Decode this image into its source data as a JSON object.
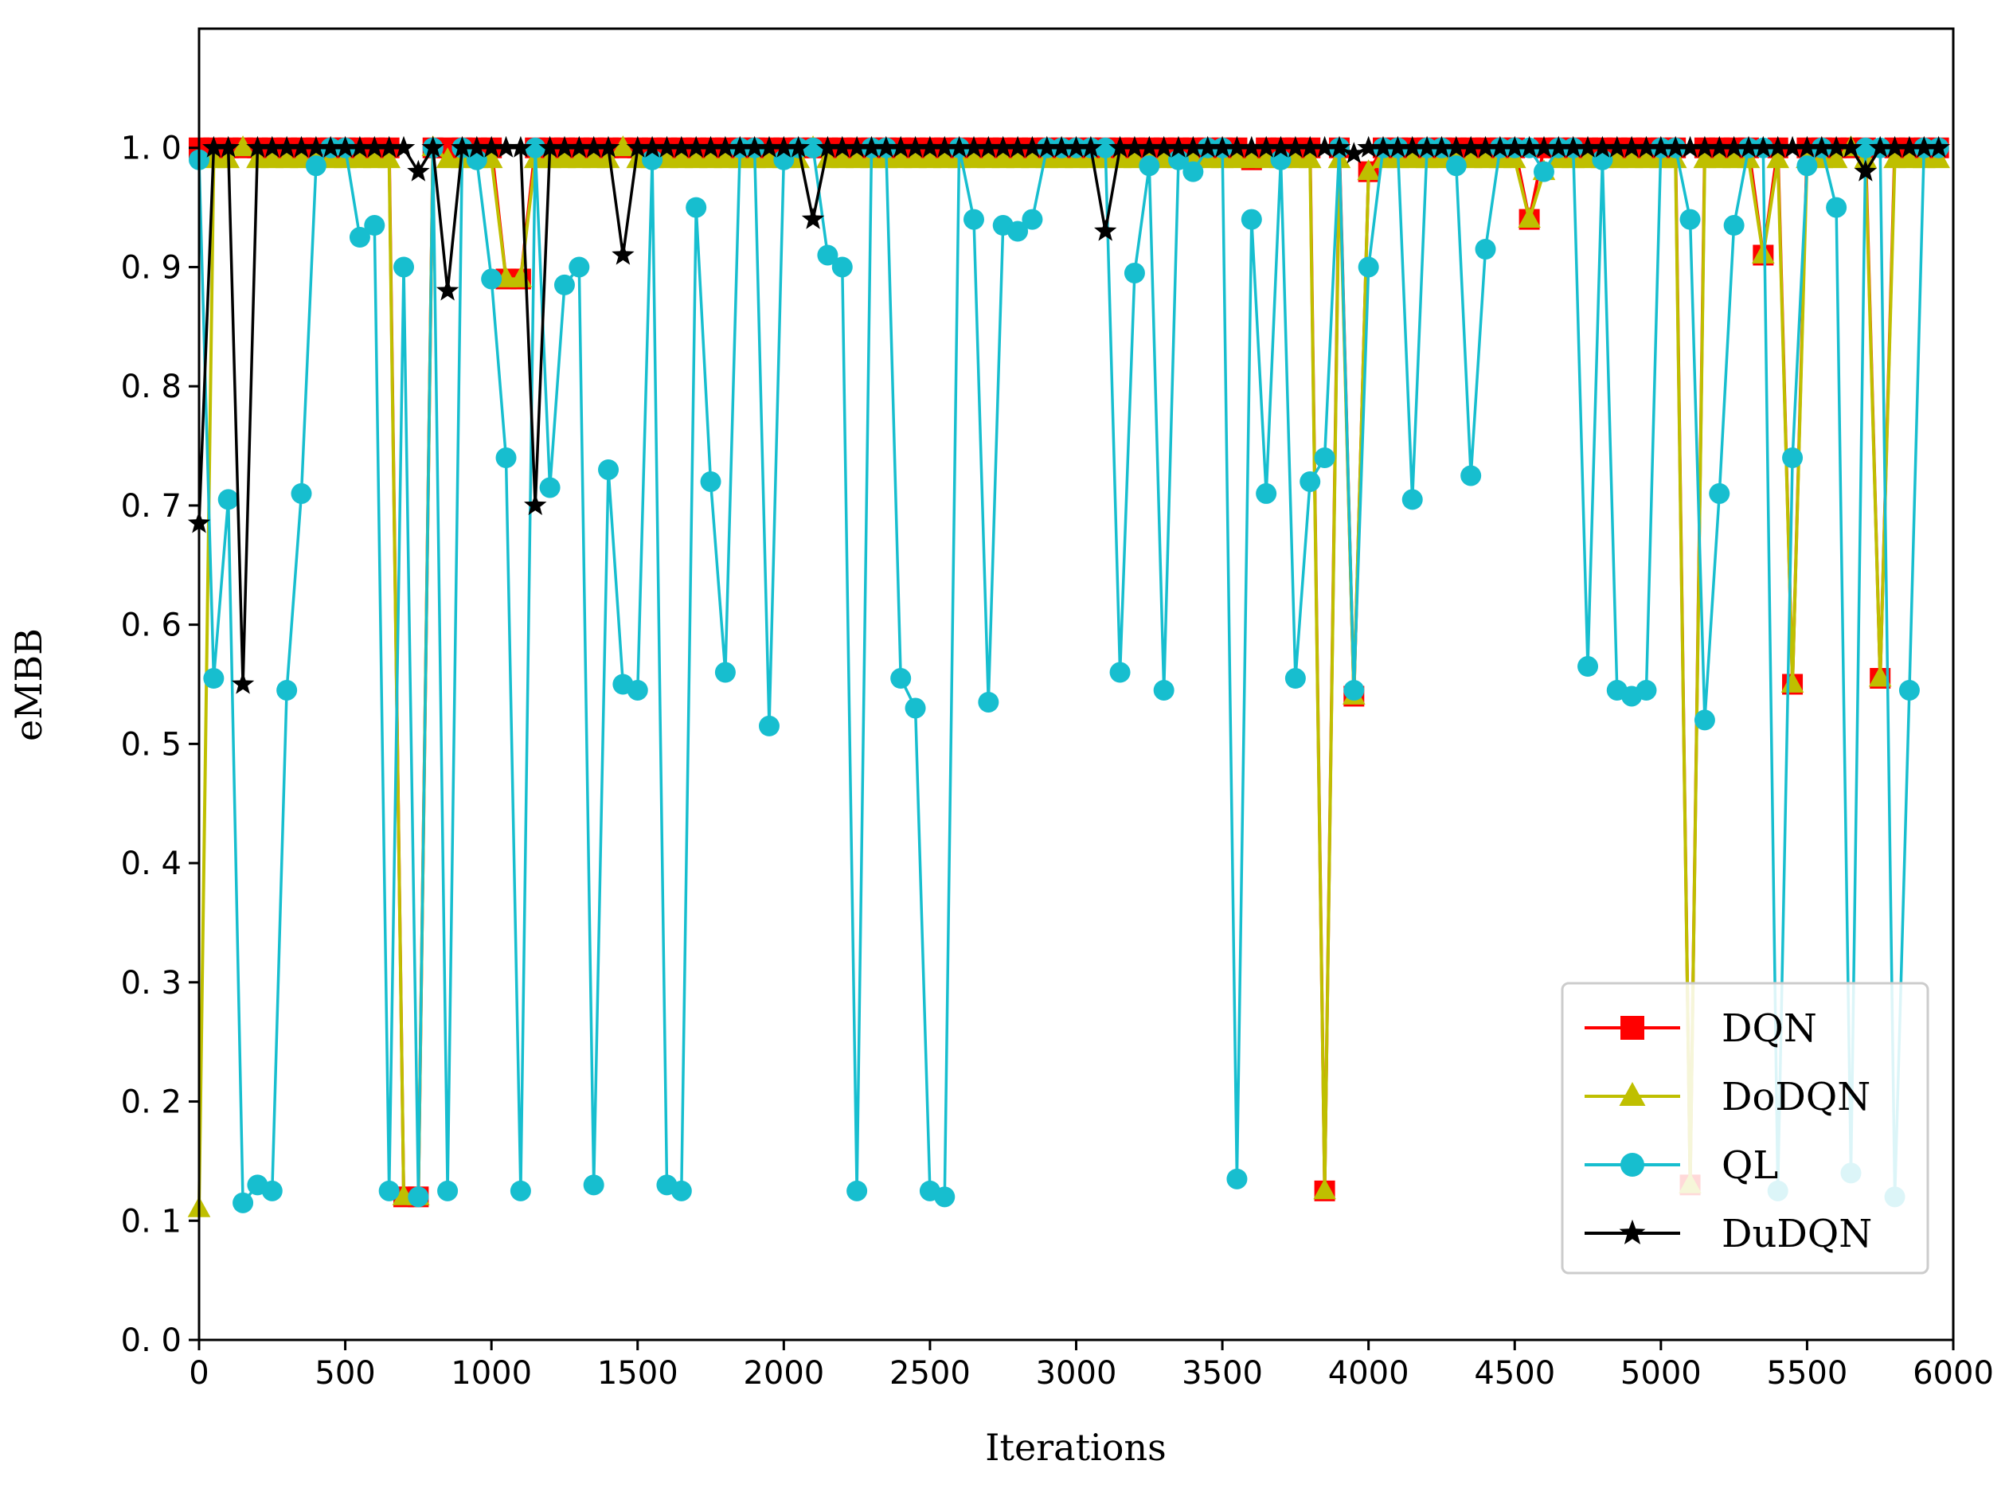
{
  "chart_data": {
    "type": "line",
    "title": "",
    "xlabel": "Iterations",
    "ylabel": "eMBB",
    "xlim": [
      0,
      6000
    ],
    "ylim": [
      0.0,
      1.1
    ],
    "x_ticks": [
      0,
      500,
      1000,
      1500,
      2000,
      2500,
      3000,
      3500,
      4000,
      4500,
      5000,
      5500,
      6000
    ],
    "x_tick_labels": [
      "0",
      "500",
      "1000",
      "1500",
      "2000",
      "2500",
      "3000",
      "3500",
      "4000",
      "4500",
      "5000",
      "5500",
      "6000"
    ],
    "y_ticks": [
      0.0,
      0.1,
      0.2,
      0.3,
      0.4,
      0.5,
      0.6,
      0.7,
      0.8,
      0.9,
      1.0
    ],
    "y_tick_labels": [
      "0. 0",
      "0. 1",
      "0. 2",
      "0. 3",
      "0. 4",
      "0. 5",
      "0. 6",
      "0. 7",
      "0. 8",
      "0. 9",
      "1. 0"
    ],
    "grid": false,
    "legend_position": "bottom-right",
    "series": [
      {
        "name": "DQN",
        "color": "#ff0000",
        "marker": "square",
        "x": [
          0,
          50,
          100,
          150,
          200,
          250,
          300,
          350,
          400,
          450,
          500,
          550,
          600,
          650,
          700,
          750,
          800,
          850,
          900,
          950,
          1000,
          1050,
          1100,
          1150,
          1200,
          1250,
          1300,
          1350,
          1400,
          1450,
          1500,
          1550,
          1600,
          1650,
          1700,
          1750,
          1800,
          1850,
          1900,
          1950,
          2000,
          2050,
          2100,
          2150,
          2200,
          2250,
          2300,
          2350,
          2400,
          2450,
          2500,
          2550,
          2600,
          2650,
          2700,
          2750,
          2800,
          2850,
          2900,
          2950,
          3000,
          3050,
          3100,
          3150,
          3200,
          3250,
          3300,
          3350,
          3400,
          3450,
          3500,
          3550,
          3600,
          3650,
          3700,
          3750,
          3800,
          3850,
          3900,
          3950,
          4000,
          4050,
          4100,
          4150,
          4200,
          4250,
          4300,
          4350,
          4400,
          4450,
          4500,
          4550,
          4600,
          4650,
          4700,
          4750,
          4800,
          4850,
          4900,
          4950,
          5000,
          5050,
          5100,
          5150,
          5200,
          5250,
          5300,
          5350,
          5400,
          5450,
          5500,
          5550,
          5600,
          5650,
          5700,
          5750,
          5800,
          5850,
          5900,
          5950
        ],
        "y": [
          1.0,
          1.0,
          1.0,
          1.0,
          1.0,
          1.0,
          1.0,
          1.0,
          1.0,
          1.0,
          1.0,
          1.0,
          1.0,
          1.0,
          0.12,
          0.12,
          1.0,
          1.0,
          1.0,
          1.0,
          1.0,
          0.89,
          0.89,
          1.0,
          1.0,
          1.0,
          1.0,
          1.0,
          1.0,
          1.0,
          1.0,
          1.0,
          1.0,
          1.0,
          1.0,
          1.0,
          1.0,
          1.0,
          1.0,
          1.0,
          1.0,
          1.0,
          1.0,
          1.0,
          1.0,
          1.0,
          1.0,
          1.0,
          1.0,
          1.0,
          1.0,
          1.0,
          1.0,
          1.0,
          1.0,
          1.0,
          1.0,
          1.0,
          1.0,
          1.0,
          1.0,
          1.0,
          1.0,
          1.0,
          1.0,
          1.0,
          1.0,
          1.0,
          1.0,
          1.0,
          1.0,
          1.0,
          0.99,
          1.0,
          1.0,
          1.0,
          1.0,
          0.125,
          1.0,
          0.54,
          0.98,
          1.0,
          1.0,
          1.0,
          1.0,
          1.0,
          1.0,
          1.0,
          1.0,
          1.0,
          1.0,
          0.94,
          1.0,
          1.0,
          1.0,
          1.0,
          1.0,
          1.0,
          1.0,
          1.0,
          1.0,
          1.0,
          0.13,
          1.0,
          1.0,
          1.0,
          1.0,
          0.91,
          1.0,
          0.55,
          1.0,
          1.0,
          1.0,
          1.0,
          1.0,
          0.555,
          1.0,
          1.0,
          1.0,
          1.0
        ]
      },
      {
        "name": "DoDQN",
        "color": "#bfbf00",
        "marker": "triangle",
        "x": [
          0,
          50,
          100,
          150,
          200,
          250,
          300,
          350,
          400,
          450,
          500,
          550,
          600,
          650,
          700,
          750,
          800,
          850,
          900,
          950,
          1000,
          1050,
          1100,
          1150,
          1200,
          1250,
          1300,
          1350,
          1400,
          1450,
          1500,
          1550,
          1600,
          1650,
          1700,
          1750,
          1800,
          1850,
          1900,
          1950,
          2000,
          2050,
          2100,
          2150,
          2200,
          2250,
          2300,
          2350,
          2400,
          2450,
          2500,
          2550,
          2600,
          2650,
          2700,
          2750,
          2800,
          2850,
          2900,
          2950,
          3000,
          3050,
          3100,
          3150,
          3200,
          3250,
          3300,
          3350,
          3400,
          3450,
          3500,
          3550,
          3600,
          3650,
          3700,
          3750,
          3800,
          3850,
          3900,
          3950,
          4000,
          4050,
          4100,
          4150,
          4200,
          4250,
          4300,
          4350,
          4400,
          4450,
          4500,
          4550,
          4600,
          4650,
          4700,
          4750,
          4800,
          4850,
          4900,
          4950,
          5000,
          5050,
          5100,
          5150,
          5200,
          5250,
          5300,
          5350,
          5400,
          5450,
          5500,
          5550,
          5600,
          5650,
          5700,
          5750,
          5800,
          5850,
          5900,
          5950
        ],
        "y": [
          0.11,
          0.99,
          0.99,
          1.0,
          0.99,
          0.99,
          0.99,
          0.99,
          0.99,
          0.99,
          0.99,
          0.99,
          0.99,
          0.99,
          0.12,
          0.12,
          1.0,
          0.99,
          0.99,
          0.99,
          0.99,
          0.89,
          0.89,
          0.99,
          0.99,
          0.99,
          0.99,
          0.99,
          0.99,
          1.0,
          0.99,
          0.99,
          0.99,
          0.99,
          0.99,
          0.99,
          0.99,
          0.99,
          0.99,
          0.99,
          0.99,
          0.99,
          1.0,
          0.99,
          0.99,
          0.99,
          0.99,
          0.99,
          0.99,
          0.99,
          0.99,
          0.99,
          0.99,
          0.99,
          0.99,
          0.99,
          0.99,
          0.99,
          0.99,
          0.99,
          0.99,
          0.99,
          0.99,
          0.99,
          0.99,
          0.99,
          0.99,
          0.99,
          0.99,
          0.99,
          0.99,
          0.99,
          0.99,
          0.99,
          0.99,
          0.99,
          0.99,
          0.125,
          0.99,
          0.54,
          0.98,
          0.99,
          0.99,
          0.99,
          0.99,
          0.99,
          0.99,
          0.99,
          0.99,
          0.99,
          0.99,
          0.94,
          0.98,
          0.99,
          0.99,
          0.99,
          0.99,
          0.99,
          0.99,
          0.99,
          0.99,
          0.99,
          0.13,
          0.99,
          0.99,
          0.99,
          0.99,
          0.91,
          0.99,
          0.55,
          0.99,
          0.99,
          0.99,
          1.0,
          0.99,
          0.555,
          0.99,
          0.99,
          0.99,
          0.99
        ]
      },
      {
        "name": "QL",
        "color": "#17becf",
        "marker": "circle",
        "x": [
          0,
          50,
          100,
          150,
          200,
          250,
          300,
          350,
          400,
          450,
          500,
          550,
          600,
          650,
          700,
          750,
          800,
          850,
          900,
          950,
          1000,
          1050,
          1100,
          1150,
          1200,
          1250,
          1300,
          1350,
          1400,
          1450,
          1500,
          1550,
          1600,
          1650,
          1700,
          1750,
          1800,
          1850,
          1900,
          1950,
          2000,
          2050,
          2100,
          2150,
          2200,
          2250,
          2300,
          2350,
          2400,
          2450,
          2500,
          2550,
          2600,
          2650,
          2700,
          2750,
          2800,
          2850,
          2900,
          2950,
          3000,
          3050,
          3100,
          3150,
          3200,
          3250,
          3300,
          3350,
          3400,
          3450,
          3500,
          3550,
          3600,
          3650,
          3700,
          3750,
          3800,
          3850,
          3900,
          3950,
          4000,
          4050,
          4100,
          4150,
          4200,
          4250,
          4300,
          4350,
          4400,
          4450,
          4500,
          4550,
          4600,
          4650,
          4700,
          4750,
          4800,
          4850,
          4900,
          4950,
          5000,
          5050,
          5100,
          5150,
          5200,
          5250,
          5300,
          5350,
          5400,
          5450,
          5500,
          5550,
          5600,
          5650,
          5700,
          5750,
          5800,
          5850,
          5900,
          5950
        ],
        "y": [
          0.99,
          0.555,
          0.705,
          0.115,
          0.13,
          0.125,
          0.545,
          0.71,
          0.985,
          1.0,
          1.0,
          0.925,
          0.935,
          0.125,
          0.9,
          0.12,
          1.0,
          0.125,
          1.0,
          0.99,
          0.89,
          0.74,
          0.125,
          1.0,
          0.715,
          0.885,
          0.9,
          0.13,
          0.73,
          0.55,
          0.545,
          0.99,
          0.13,
          0.125,
          0.95,
          0.72,
          0.56,
          1.0,
          1.0,
          0.515,
          0.99,
          1.0,
          1.0,
          0.91,
          0.9,
          0.125,
          1.0,
          1.0,
          0.555,
          0.53,
          0.125,
          0.12,
          1.0,
          0.94,
          0.535,
          0.935,
          0.93,
          0.94,
          1.0,
          1.0,
          1.0,
          1.0,
          1.0,
          0.56,
          0.895,
          0.985,
          0.545,
          0.99,
          0.98,
          1.0,
          1.0,
          0.135,
          0.94,
          0.71,
          0.99,
          0.555,
          0.72,
          0.74,
          1.0,
          0.545,
          0.9,
          1.0,
          1.0,
          0.705,
          1.0,
          1.0,
          0.985,
          0.725,
          0.915,
          1.0,
          1.0,
          1.0,
          0.98,
          1.0,
          1.0,
          0.565,
          0.99,
          0.545,
          0.54,
          0.545,
          1.0,
          1.0,
          0.94,
          0.52,
          0.71,
          0.935,
          1.0,
          1.0,
          0.125,
          0.74,
          0.985,
          1.0,
          0.95,
          0.14,
          1.0,
          1.0,
          0.12,
          0.545,
          1.0,
          1.0
        ]
      },
      {
        "name": "DuDQN",
        "color": "#000000",
        "marker": "star",
        "x": [
          0,
          50,
          100,
          150,
          200,
          250,
          300,
          350,
          400,
          450,
          500,
          550,
          600,
          650,
          700,
          750,
          800,
          850,
          900,
          950,
          1000,
          1050,
          1100,
          1150,
          1200,
          1250,
          1300,
          1350,
          1400,
          1450,
          1500,
          1550,
          1600,
          1650,
          1700,
          1750,
          1800,
          1850,
          1900,
          1950,
          2000,
          2050,
          2100,
          2150,
          2200,
          2250,
          2300,
          2350,
          2400,
          2450,
          2500,
          2550,
          2600,
          2650,
          2700,
          2750,
          2800,
          2850,
          2900,
          2950,
          3000,
          3050,
          3100,
          3150,
          3200,
          3250,
          3300,
          3350,
          3400,
          3450,
          3500,
          3550,
          3600,
          3650,
          3700,
          3750,
          3800,
          3850,
          3900,
          3950,
          4000,
          4050,
          4100,
          4150,
          4200,
          4250,
          4300,
          4350,
          4400,
          4450,
          4500,
          4550,
          4600,
          4650,
          4700,
          4750,
          4800,
          4850,
          4900,
          4950,
          5000,
          5050,
          5100,
          5150,
          5200,
          5250,
          5300,
          5350,
          5400,
          5450,
          5500,
          5550,
          5600,
          5650,
          5700,
          5750,
          5800,
          5850,
          5900,
          5950
        ],
        "y": [
          0.685,
          1.0,
          1.0,
          0.55,
          1.0,
          1.0,
          1.0,
          1.0,
          1.0,
          1.0,
          1.0,
          1.0,
          1.0,
          1.0,
          1.0,
          0.98,
          1.0,
          0.88,
          1.0,
          1.0,
          1.0,
          1.0,
          1.0,
          0.7,
          1.0,
          1.0,
          1.0,
          1.0,
          1.0,
          0.91,
          1.0,
          1.0,
          1.0,
          1.0,
          1.0,
          1.0,
          1.0,
          1.0,
          1.0,
          1.0,
          1.0,
          1.0,
          0.94,
          1.0,
          1.0,
          1.0,
          1.0,
          1.0,
          1.0,
          1.0,
          1.0,
          1.0,
          1.0,
          1.0,
          1.0,
          1.0,
          1.0,
          1.0,
          1.0,
          1.0,
          1.0,
          1.0,
          0.93,
          1.0,
          1.0,
          1.0,
          1.0,
          1.0,
          1.0,
          1.0,
          1.0,
          1.0,
          1.0,
          1.0,
          1.0,
          1.0,
          1.0,
          1.0,
          1.0,
          0.995,
          1.0,
          1.0,
          1.0,
          1.0,
          1.0,
          1.0,
          1.0,
          1.0,
          1.0,
          1.0,
          1.0,
          1.0,
          1.0,
          1.0,
          1.0,
          1.0,
          1.0,
          1.0,
          1.0,
          1.0,
          1.0,
          1.0,
          1.0,
          1.0,
          1.0,
          1.0,
          1.0,
          1.0,
          1.0,
          1.0,
          1.0,
          1.0,
          1.0,
          1.0,
          0.98,
          1.0,
          1.0,
          1.0,
          1.0,
          1.0
        ]
      }
    ]
  }
}
